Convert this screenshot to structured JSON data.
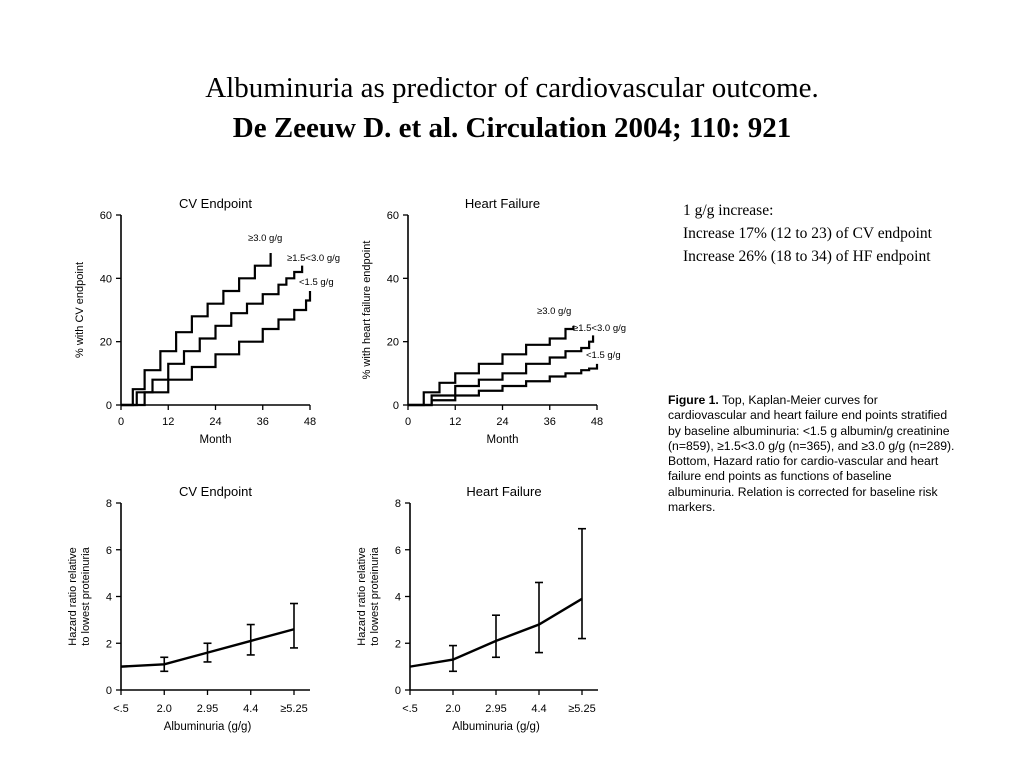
{
  "slide": {
    "title_line1": "Albuminuria as predictor of cardiovascular outcome.",
    "title_line2": "De Zeeuw D. et al. Circulation 2004; 110: 921",
    "note": [
      "1 g/g increase:",
      "Increase 17% (12 to 23) of CV endpoint",
      "Increase 26% (18 to 34) of HF endpoint"
    ]
  },
  "caption": {
    "label": "Figure 1.",
    "text": "Top, Kaplan-Meier curves for cardiovascular and heart failure end points stratified by baseline albuminuria: <1.5 g albumin/g creatinine (n=859), ≥1.5<3.0 g/g (n=365), and ≥3.0 g/g (n=289). Bottom, Hazard ratio for cardio-vascular and heart failure end points as functions of baseline albuminuria. Relation is corrected for baseline risk markers."
  },
  "chart_data": [
    {
      "type": "line",
      "title": "CV Endpoint",
      "xlabel": "Month",
      "ylabel": "% with CV endpoint",
      "xticks": [
        "0",
        "12",
        "24",
        "36",
        "48"
      ],
      "yticks": [
        "0",
        "20",
        "40",
        "60"
      ],
      "xlim": [
        0,
        48
      ],
      "ylim": [
        0,
        60
      ],
      "series": [
        {
          "name": "≥3.0 g/g",
          "x": [
            0,
            3,
            6,
            10,
            14,
            18,
            22,
            26,
            30,
            34,
            38
          ],
          "y": [
            0,
            5,
            11,
            17,
            23,
            28,
            32,
            36,
            40,
            44,
            48
          ]
        },
        {
          "name": "≥1.5<3.0 g/g",
          "x": [
            0,
            4,
            8,
            12,
            16,
            20,
            24,
            28,
            32,
            36,
            40,
            42,
            44,
            46
          ],
          "y": [
            0,
            4,
            8,
            13,
            17,
            21,
            25,
            29,
            32,
            35,
            38,
            40,
            42,
            44
          ]
        },
        {
          "name": "<1.5 g/g",
          "x": [
            0,
            6,
            12,
            18,
            24,
            30,
            36,
            40,
            44,
            47,
            48
          ],
          "y": [
            0,
            4,
            8,
            12,
            16,
            20,
            24,
            27,
            30,
            33,
            36
          ]
        }
      ]
    },
    {
      "type": "line",
      "title": "Heart Failure",
      "xlabel": "Month",
      "ylabel": "% with heart failure endpoint",
      "xticks": [
        "0",
        "12",
        "24",
        "36",
        "48"
      ],
      "yticks": [
        "0",
        "20",
        "40",
        "60"
      ],
      "xlim": [
        0,
        48
      ],
      "ylim": [
        0,
        60
      ],
      "series": [
        {
          "name": "≥3.0 g/g",
          "x": [
            0,
            4,
            8,
            12,
            18,
            24,
            30,
            36,
            40,
            42
          ],
          "y": [
            0,
            4,
            7,
            10,
            13,
            16,
            19,
            21,
            24,
            25
          ]
        },
        {
          "name": "≥1.5<3.0 g/g",
          "x": [
            0,
            6,
            12,
            18,
            24,
            30,
            36,
            40,
            44,
            46,
            47
          ],
          "y": [
            0,
            3,
            6,
            8,
            10,
            13,
            15,
            17,
            18,
            20,
            22
          ]
        },
        {
          "name": "<1.5 g/g",
          "x": [
            0,
            6,
            12,
            18,
            24,
            30,
            36,
            40,
            44,
            46,
            48
          ],
          "y": [
            0,
            1.5,
            3,
            4.5,
            6,
            7.5,
            9,
            10,
            11,
            11.5,
            13
          ]
        }
      ]
    },
    {
      "type": "line",
      "title": "CV Endpoint",
      "xlabel": "Albuminuria (g/g)",
      "ylabel": "Hazard ratio relative to lowest proteinuria",
      "categories": [
        "<.5",
        "2.0",
        "2.95",
        "4.4",
        "≥5.25"
      ],
      "yticks": [
        "0",
        "2",
        "4",
        "6",
        "8"
      ],
      "ylim": [
        0,
        8
      ],
      "series": [
        {
          "values": [
            1.0,
            1.1,
            1.6,
            2.1,
            2.6
          ],
          "lower": [
            null,
            0.8,
            1.2,
            1.5,
            1.8
          ],
          "upper": [
            null,
            1.4,
            2.0,
            2.8,
            3.7
          ]
        }
      ]
    },
    {
      "type": "line",
      "title": "Heart Failure",
      "xlabel": "Albuminuria (g/g)",
      "ylabel": "Hazard ratio relative to lowest proteinuria",
      "categories": [
        "<.5",
        "2.0",
        "2.95",
        "4.4",
        "≥5.25"
      ],
      "yticks": [
        "0",
        "2",
        "4",
        "6",
        "8"
      ],
      "ylim": [
        0,
        8
      ],
      "series": [
        {
          "values": [
            1.0,
            1.3,
            2.1,
            2.8,
            3.9
          ],
          "lower": [
            null,
            0.8,
            1.4,
            1.6,
            2.2
          ],
          "upper": [
            null,
            1.9,
            3.2,
            4.6,
            6.9
          ]
        }
      ]
    }
  ]
}
